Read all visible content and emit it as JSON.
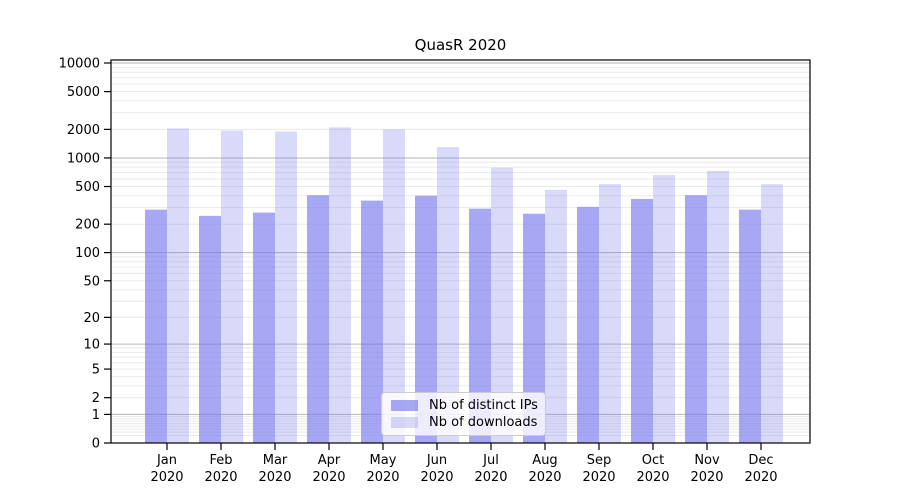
{
  "chart_data": {
    "type": "bar",
    "title": "QuasR 2020",
    "year": "2020",
    "categories": [
      "Jan",
      "Feb",
      "Mar",
      "Apr",
      "May",
      "Jun",
      "Jul",
      "Aug",
      "Sep",
      "Oct",
      "Nov",
      "Dec"
    ],
    "series": [
      {
        "name": "Nb of distinct IPs",
        "color": "rgba(120,120,238,0.65)",
        "values": [
          285,
          245,
          265,
          405,
          355,
          400,
          292,
          258,
          305,
          370,
          405,
          285
        ]
      },
      {
        "name": "Nb of downloads",
        "color": "rgba(120,120,238,0.28)",
        "values": [
          2050,
          1950,
          1900,
          2100,
          2000,
          1300,
          790,
          460,
          530,
          660,
          730,
          530
        ]
      }
    ],
    "yscale": "log1p",
    "yticks": [
      0,
      1,
      2,
      5,
      10,
      20,
      50,
      100,
      200,
      500,
      1000,
      2000,
      5000,
      10000
    ],
    "ylim": [
      0,
      10750
    ],
    "xlabel": "",
    "ylabel": "",
    "grid": true,
    "legend_position": "lower-center"
  },
  "style": {
    "bar_base_color": "#7878ee",
    "grid_minor_color": "#eaeaea",
    "grid_major_color": "#b6b6b6",
    "axis_color": "#000000",
    "text_color": "#000000",
    "legend_bg": "rgba(255,255,255,0.8)",
    "legend_border": "#cccccc"
  }
}
